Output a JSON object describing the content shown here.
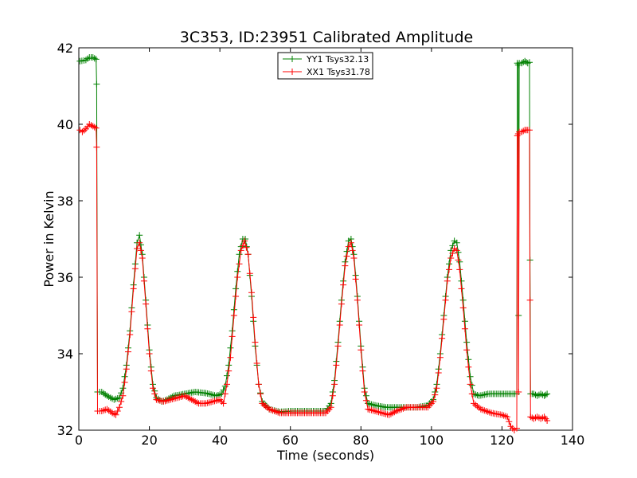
{
  "chart_data": {
    "type": "line",
    "title": "3C353, ID:23951 Calibrated Amplitude",
    "xlabel": "Time (seconds)",
    "ylabel": "Power in Kelvin",
    "xlim": [
      0,
      140
    ],
    "ylim": [
      32,
      42
    ],
    "xticks": [
      "0",
      "20",
      "40",
      "60",
      "80",
      "100",
      "120",
      "140"
    ],
    "yticks": [
      "32",
      "34",
      "36",
      "38",
      "40",
      "42"
    ],
    "grid": false,
    "legend_position": "top-center",
    "marker": "+",
    "series": [
      {
        "name": "YY1 Tsys32.13",
        "color": "#008000",
        "points": [
          [
            0.3,
            41.65
          ],
          [
            2.0,
            41.68
          ],
          [
            3.0,
            41.75
          ],
          [
            4.0,
            41.75
          ],
          [
            4.9,
            41.7
          ],
          [
            5.05,
            41.05
          ],
          [
            5.3,
            33.0
          ],
          [
            6.5,
            33.0
          ],
          [
            8.0,
            32.9
          ],
          [
            10.0,
            32.8
          ],
          [
            11.5,
            32.85
          ],
          [
            12.5,
            33.1
          ],
          [
            13.5,
            33.7
          ],
          [
            14.5,
            34.6
          ],
          [
            15.5,
            35.8
          ],
          [
            16.5,
            36.9
          ],
          [
            17.2,
            37.1
          ],
          [
            18.0,
            36.6
          ],
          [
            19.0,
            35.4
          ],
          [
            20.0,
            34.1
          ],
          [
            21.0,
            33.2
          ],
          [
            22.0,
            32.85
          ],
          [
            23.5,
            32.75
          ],
          [
            25.0,
            32.8
          ],
          [
            27.0,
            32.9
          ],
          [
            30.0,
            32.95
          ],
          [
            33.0,
            33.0
          ],
          [
            36.0,
            32.97
          ],
          [
            39.0,
            32.9
          ],
          [
            40.5,
            32.95
          ],
          [
            41.5,
            33.15
          ],
          [
            42.5,
            33.7
          ],
          [
            43.5,
            34.6
          ],
          [
            44.5,
            35.7
          ],
          [
            45.5,
            36.6
          ],
          [
            46.5,
            37.0
          ],
          [
            47.2,
            37.0
          ],
          [
            48.0,
            36.6
          ],
          [
            49.0,
            35.5
          ],
          [
            50.0,
            34.2
          ],
          [
            51.0,
            33.2
          ],
          [
            52.0,
            32.75
          ],
          [
            54.0,
            32.55
          ],
          [
            57.0,
            32.48
          ],
          [
            60.0,
            32.5
          ],
          [
            64.0,
            32.5
          ],
          [
            67.0,
            32.5
          ],
          [
            70.0,
            32.5
          ],
          [
            71.5,
            32.7
          ],
          [
            72.5,
            33.3
          ],
          [
            73.5,
            34.3
          ],
          [
            74.5,
            35.4
          ],
          [
            75.5,
            36.4
          ],
          [
            76.5,
            36.95
          ],
          [
            77.2,
            37.0
          ],
          [
            78.0,
            36.6
          ],
          [
            79.0,
            35.5
          ],
          [
            80.0,
            34.2
          ],
          [
            81.0,
            33.1
          ],
          [
            82.0,
            32.7
          ],
          [
            84.0,
            32.65
          ],
          [
            87.0,
            32.6
          ],
          [
            90.0,
            32.6
          ],
          [
            93.0,
            32.6
          ],
          [
            96.0,
            32.6
          ],
          [
            99.0,
            32.65
          ],
          [
            100.5,
            32.8
          ],
          [
            101.5,
            33.2
          ],
          [
            102.5,
            34.0
          ],
          [
            103.5,
            35.0
          ],
          [
            104.5,
            36.0
          ],
          [
            105.5,
            36.7
          ],
          [
            106.5,
            36.95
          ],
          [
            107.2,
            36.9
          ],
          [
            108.0,
            36.4
          ],
          [
            109.0,
            35.4
          ],
          [
            110.0,
            34.3
          ],
          [
            111.0,
            33.4
          ],
          [
            112.0,
            32.95
          ],
          [
            113.5,
            32.9
          ],
          [
            116.0,
            32.95
          ],
          [
            119.0,
            32.95
          ],
          [
            122.0,
            32.95
          ],
          [
            124.2,
            32.95
          ],
          [
            124.35,
            41.6
          ],
          [
            124.6,
            41.55
          ],
          [
            124.7,
            35.0
          ],
          [
            124.9,
            41.6
          ],
          [
            125.6,
            41.6
          ],
          [
            126.5,
            41.65
          ],
          [
            127.3,
            41.6
          ],
          [
            127.8,
            41.62
          ],
          [
            127.95,
            36.45
          ],
          [
            128.1,
            32.95
          ],
          [
            129.0,
            32.95
          ],
          [
            130.0,
            32.9
          ],
          [
            131.0,
            32.95
          ],
          [
            132.0,
            32.9
          ],
          [
            132.8,
            32.95
          ]
        ]
      },
      {
        "name": "XX1 Tsys31.78",
        "color": "#ff0000",
        "points": [
          [
            0.3,
            39.85
          ],
          [
            1.0,
            39.8
          ],
          [
            2.0,
            39.88
          ],
          [
            3.0,
            40.0
          ],
          [
            4.0,
            39.95
          ],
          [
            4.9,
            39.9
          ],
          [
            5.05,
            39.4
          ],
          [
            5.3,
            32.5
          ],
          [
            6.5,
            32.5
          ],
          [
            8.0,
            32.55
          ],
          [
            9.5,
            32.45
          ],
          [
            10.5,
            32.4
          ],
          [
            11.5,
            32.6
          ],
          [
            12.5,
            32.9
          ],
          [
            13.5,
            33.6
          ],
          [
            14.5,
            34.5
          ],
          [
            15.5,
            35.7
          ],
          [
            16.5,
            36.75
          ],
          [
            17.2,
            36.9
          ],
          [
            18.0,
            36.5
          ],
          [
            19.0,
            35.3
          ],
          [
            20.0,
            34.0
          ],
          [
            21.0,
            33.1
          ],
          [
            22.0,
            32.8
          ],
          [
            24.0,
            32.75
          ],
          [
            26.0,
            32.8
          ],
          [
            28.0,
            32.85
          ],
          [
            30.0,
            32.9
          ],
          [
            32.0,
            32.8
          ],
          [
            34.0,
            32.7
          ],
          [
            36.0,
            32.7
          ],
          [
            38.0,
            32.75
          ],
          [
            40.0,
            32.8
          ],
          [
            41.0,
            32.7
          ],
          [
            42.0,
            33.2
          ],
          [
            43.0,
            33.9
          ],
          [
            44.0,
            35.0
          ],
          [
            45.0,
            36.0
          ],
          [
            46.0,
            36.7
          ],
          [
            47.0,
            36.95
          ],
          [
            48.0,
            36.6
          ],
          [
            49.0,
            35.6
          ],
          [
            50.0,
            34.3
          ],
          [
            51.0,
            33.2
          ],
          [
            52.0,
            32.7
          ],
          [
            54.0,
            32.55
          ],
          [
            57.0,
            32.45
          ],
          [
            60.0,
            32.45
          ],
          [
            64.0,
            32.45
          ],
          [
            67.0,
            32.45
          ],
          [
            70.0,
            32.45
          ],
          [
            71.5,
            32.6
          ],
          [
            72.5,
            33.2
          ],
          [
            73.5,
            34.2
          ],
          [
            74.5,
            35.3
          ],
          [
            75.5,
            36.3
          ],
          [
            76.5,
            36.8
          ],
          [
            77.2,
            36.9
          ],
          [
            78.0,
            36.5
          ],
          [
            79.0,
            35.4
          ],
          [
            80.0,
            34.1
          ],
          [
            81.0,
            33.0
          ],
          [
            82.0,
            32.55
          ],
          [
            84.0,
            32.5
          ],
          [
            86.0,
            32.45
          ],
          [
            88.0,
            32.4
          ],
          [
            90.0,
            32.5
          ],
          [
            93.0,
            32.6
          ],
          [
            96.0,
            32.6
          ],
          [
            99.0,
            32.6
          ],
          [
            100.5,
            32.75
          ],
          [
            101.5,
            33.1
          ],
          [
            102.5,
            33.9
          ],
          [
            103.5,
            34.9
          ],
          [
            104.5,
            35.9
          ],
          [
            105.5,
            36.5
          ],
          [
            106.5,
            36.75
          ],
          [
            107.2,
            36.7
          ],
          [
            108.0,
            36.2
          ],
          [
            109.0,
            35.2
          ],
          [
            110.0,
            34.1
          ],
          [
            111.0,
            33.2
          ],
          [
            112.0,
            32.7
          ],
          [
            114.0,
            32.55
          ],
          [
            117.0,
            32.45
          ],
          [
            120.0,
            32.4
          ],
          [
            121.5,
            32.35
          ],
          [
            122.5,
            32.1
          ],
          [
            123.5,
            32.0
          ],
          [
            124.2,
            32.05
          ],
          [
            124.35,
            39.7
          ],
          [
            124.6,
            39.75
          ],
          [
            124.7,
            33.0
          ],
          [
            124.9,
            39.8
          ],
          [
            125.6,
            39.8
          ],
          [
            126.5,
            39.85
          ],
          [
            127.3,
            39.85
          ],
          [
            127.8,
            39.85
          ],
          [
            127.95,
            35.4
          ],
          [
            128.1,
            32.35
          ],
          [
            129.0,
            32.3
          ],
          [
            130.0,
            32.35
          ],
          [
            131.0,
            32.3
          ],
          [
            132.0,
            32.35
          ],
          [
            132.8,
            32.25
          ]
        ]
      }
    ]
  }
}
